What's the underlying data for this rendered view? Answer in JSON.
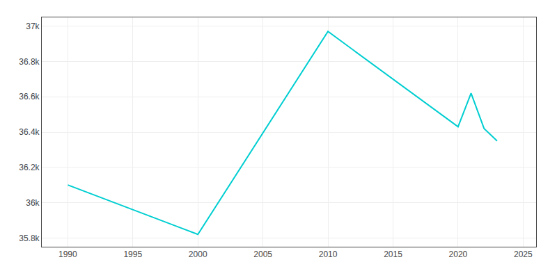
{
  "chart_data": {
    "type": "line",
    "x": [
      1990,
      2000,
      2010,
      2015,
      2020,
      2021,
      2022,
      2023
    ],
    "values": [
      36100,
      35820,
      36970,
      36700,
      36430,
      36620,
      36420,
      36350
    ],
    "color": "#00CED1",
    "xlim": [
      1988,
      2026
    ],
    "xticks": [
      1990,
      1995,
      2000,
      2005,
      2010,
      2015,
      2020,
      2025
    ],
    "ylim": [
      35750,
      37050
    ],
    "yticks": [
      {
        "value": 35800,
        "label": "35.8k"
      },
      {
        "value": 36000,
        "label": "36k"
      },
      {
        "value": 36200,
        "label": "36.2k"
      },
      {
        "value": 36400,
        "label": "36.4k"
      },
      {
        "value": 36600,
        "label": "36.6k"
      },
      {
        "value": 36800,
        "label": "36.8k"
      },
      {
        "value": 37000,
        "label": "37k"
      }
    ],
    "grid": true
  }
}
